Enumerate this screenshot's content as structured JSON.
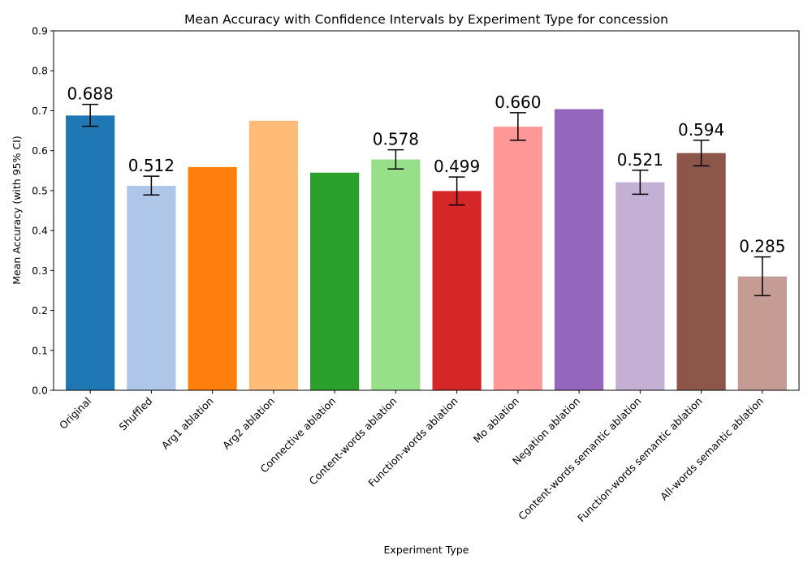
{
  "chart_data": {
    "type": "bar",
    "title": "Mean Accuracy with Confidence Intervals by Experiment Type for concession",
    "xlabel": "Experiment Type",
    "ylabel": "Mean Accuracy (with 95% CI)",
    "ylim": [
      0,
      0.9
    ],
    "yticks": [
      "0.0",
      "0.1",
      "0.2",
      "0.3",
      "0.4",
      "0.5",
      "0.6",
      "0.7",
      "0.8",
      "0.9"
    ],
    "grid": false,
    "categories": [
      "Original",
      "Shuffled",
      "Arg1 ablation",
      "Arg2 ablation",
      "Connective ablation",
      "Content-words ablation",
      "Function-words ablation",
      "Mo ablation",
      "Negation ablation",
      "Content-words semantic ablation",
      "Function-words semantic ablation",
      "All-words semantic ablation"
    ],
    "values": [
      0.688,
      0.512,
      0.559,
      0.675,
      0.545,
      0.578,
      0.499,
      0.66,
      0.704,
      0.521,
      0.594,
      0.285
    ],
    "ci_low": [
      0.661,
      0.489,
      null,
      null,
      null,
      0.554,
      0.464,
      0.626,
      null,
      0.491,
      0.562,
      0.237
    ],
    "ci_high": [
      0.716,
      0.536,
      null,
      null,
      null,
      0.602,
      0.534,
      0.695,
      null,
      0.551,
      0.626,
      0.334
    ],
    "value_labels": [
      "0.688",
      "0.512",
      "",
      "",
      "",
      "0.578",
      "0.499",
      "0.660",
      "",
      "0.521",
      "0.594",
      "0.285"
    ],
    "colors": [
      "#1f77b4",
      "#aec7e8",
      "#ff7f0e",
      "#ffbb78",
      "#2ca02c",
      "#98df8a",
      "#d62728",
      "#ff9896",
      "#9467bd",
      "#c5b0d5",
      "#8c564b",
      "#c49c94"
    ]
  }
}
